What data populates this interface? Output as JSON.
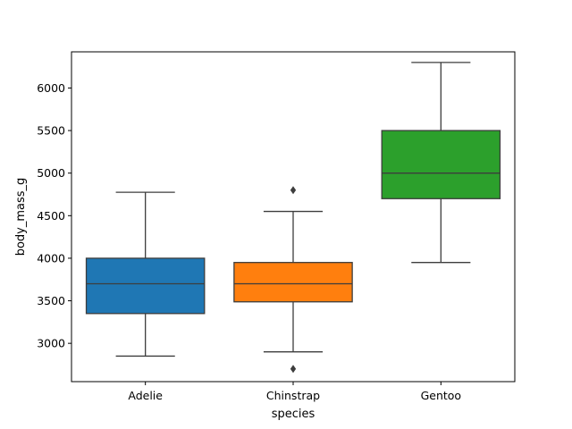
{
  "chart_data": {
    "type": "box",
    "title": "",
    "xlabel": "species",
    "ylabel": "body_mass_g",
    "ylim": [
      2550,
      6425
    ],
    "yticks": [
      3000,
      3500,
      4000,
      4500,
      5000,
      5500,
      6000
    ],
    "grid": false,
    "legend": "none",
    "categories": [
      "Adelie",
      "Chinstrap",
      "Gentoo"
    ],
    "boxes": [
      {
        "category": "Adelie",
        "color": "#1f77b4",
        "whisker_low": 2850,
        "q1": 3350,
        "median": 3700,
        "q3": 4000,
        "whisker_high": 4775,
        "outliers": []
      },
      {
        "category": "Chinstrap",
        "color": "#ff7f0e",
        "whisker_low": 2900,
        "q1": 3487.5,
        "median": 3700,
        "q3": 3950,
        "whisker_high": 4550,
        "outliers": [
          4800,
          2700
        ]
      },
      {
        "category": "Gentoo",
        "color": "#2ca02c",
        "whisker_low": 3950,
        "q1": 4700,
        "median": 5000,
        "q3": 5500,
        "whisker_high": 6300,
        "outliers": []
      }
    ]
  }
}
